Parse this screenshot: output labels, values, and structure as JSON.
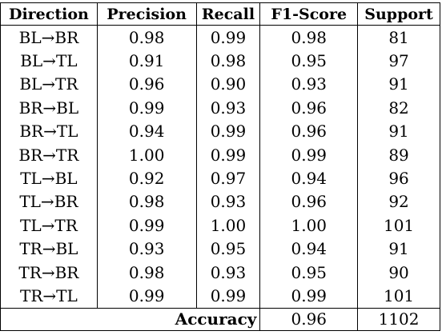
{
  "table": {
    "headers": [
      "Direction",
      "Precision",
      "Recall",
      "F1-Score",
      "Support"
    ],
    "rows": [
      [
        "BL→BR",
        "0.98",
        "0.99",
        "0.98",
        "81"
      ],
      [
        "BL→TL",
        "0.91",
        "0.98",
        "0.95",
        "97"
      ],
      [
        "BL→TR",
        "0.96",
        "0.90",
        "0.93",
        "91"
      ],
      [
        "BR→BL",
        "0.99",
        "0.93",
        "0.96",
        "82"
      ],
      [
        "BR→TL",
        "0.94",
        "0.99",
        "0.96",
        "91"
      ],
      [
        "BR→TR",
        "1.00",
        "0.99",
        "0.99",
        "89"
      ],
      [
        "TL→BL",
        "0.92",
        "0.97",
        "0.94",
        "96"
      ],
      [
        "TL→BR",
        "0.98",
        "0.93",
        "0.96",
        "92"
      ],
      [
        "TL→TR",
        "0.99",
        "1.00",
        "1.00",
        "101"
      ],
      [
        "TR→BL",
        "0.93",
        "0.95",
        "0.94",
        "91"
      ],
      [
        "TR→BR",
        "0.98",
        "0.93",
        "0.95",
        "90"
      ],
      [
        "TR→TL",
        "0.99",
        "0.99",
        "0.99",
        "101"
      ]
    ],
    "footer": {
      "label": "Accuracy",
      "f1_score": "0.96",
      "support": "1102"
    }
  }
}
